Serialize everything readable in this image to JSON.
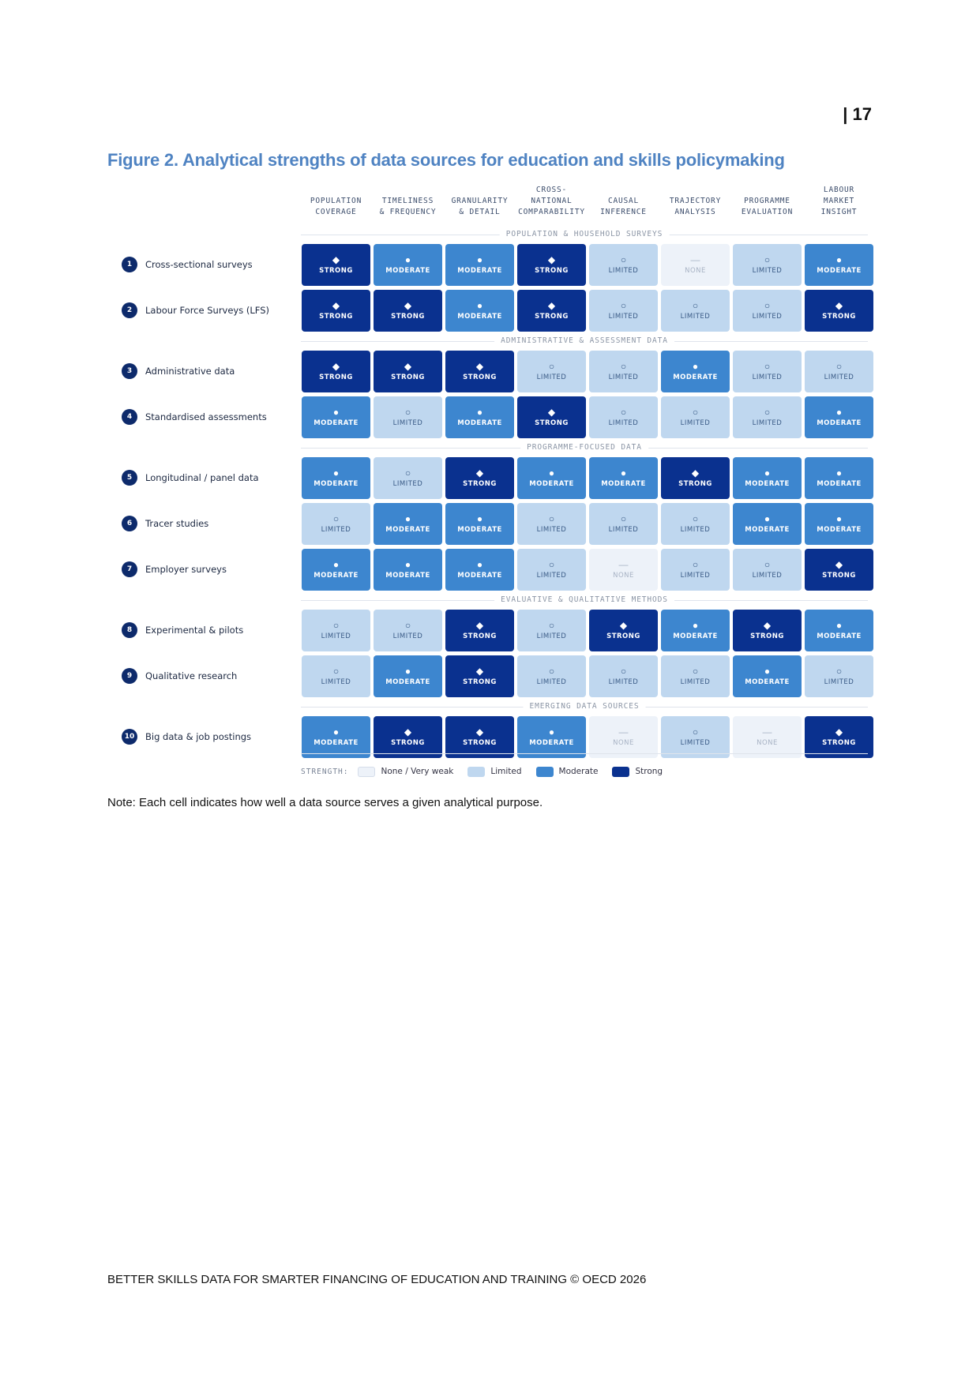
{
  "page": {
    "number": "| 17",
    "figure_title": "Figure 2. Analytical strengths of data sources for education and skills policymaking",
    "note": "Note: Each cell indicates how well a data source serves a given analytical purpose.",
    "footer": "BETTER SKILLS DATA FOR SMARTER FINANCING OF EDUCATION AND TRAINING © OECD 2026"
  },
  "columns": [
    "POPULATION\nCOVERAGE",
    "TIMELINESS\n& FREQUENCY",
    "GRANULARITY\n& DETAIL",
    "CROSS-\nNATIONAL\nCOMPARABILITY",
    "CAUSAL\nINFERENCE",
    "TRAJECTORY\nANALYSIS",
    "PROGRAMME\nEVALUATION",
    "LABOUR\nMARKET\nINSIGHT"
  ],
  "levels": {
    "strong": {
      "label": "STRONG",
      "symbol": "◆"
    },
    "moderate": {
      "label": "MODERATE",
      "symbol": "●"
    },
    "limited": {
      "label": "LIMITED",
      "symbol": "○"
    },
    "none": {
      "label": "NONE",
      "symbol": "—"
    }
  },
  "sections": [
    {
      "title": "POPULATION & HOUSEHOLD SURVEYS",
      "rows": [
        {
          "n": "1",
          "label": "Cross-sectional surveys",
          "cells": [
            "strong",
            "moderate",
            "moderate",
            "strong",
            "limited",
            "none",
            "limited",
            "moderate"
          ]
        },
        {
          "n": "2",
          "label": "Labour Force Surveys (LFS)",
          "cells": [
            "strong",
            "strong",
            "moderate",
            "strong",
            "limited",
            "limited",
            "limited",
            "strong"
          ]
        }
      ]
    },
    {
      "title": "ADMINISTRATIVE & ASSESSMENT DATA",
      "rows": [
        {
          "n": "3",
          "label": "Administrative data",
          "cells": [
            "strong",
            "strong",
            "strong",
            "limited",
            "limited",
            "moderate",
            "limited",
            "limited"
          ]
        },
        {
          "n": "4",
          "label": "Standardised assessments",
          "cells": [
            "moderate",
            "limited",
            "moderate",
            "strong",
            "limited",
            "limited",
            "limited",
            "moderate"
          ]
        }
      ]
    },
    {
      "title": "PROGRAMME-FOCUSED DATA",
      "rows": [
        {
          "n": "5",
          "label": "Longitudinal / panel data",
          "cells": [
            "moderate",
            "limited",
            "strong",
            "moderate",
            "moderate",
            "strong",
            "moderate",
            "moderate"
          ]
        },
        {
          "n": "6",
          "label": "Tracer studies",
          "cells": [
            "limited",
            "moderate",
            "moderate",
            "limited",
            "limited",
            "limited",
            "moderate",
            "moderate"
          ]
        },
        {
          "n": "7",
          "label": "Employer surveys",
          "cells": [
            "moderate",
            "moderate",
            "moderate",
            "limited",
            "none",
            "limited",
            "limited",
            "strong"
          ]
        }
      ]
    },
    {
      "title": "EVALUATIVE & QUALITATIVE METHODS",
      "rows": [
        {
          "n": "8",
          "label": "Experimental & pilots",
          "cells": [
            "limited",
            "limited",
            "strong",
            "limited",
            "strong",
            "moderate",
            "strong",
            "moderate"
          ]
        },
        {
          "n": "9",
          "label": "Qualitative research",
          "cells": [
            "limited",
            "moderate",
            "strong",
            "limited",
            "limited",
            "limited",
            "moderate",
            "limited"
          ]
        }
      ]
    },
    {
      "title": "EMERGING DATA SOURCES",
      "rows": [
        {
          "n": "10",
          "label": "Big data & job postings",
          "cells": [
            "moderate",
            "strong",
            "strong",
            "moderate",
            "none",
            "limited",
            "none",
            "strong"
          ]
        }
      ]
    }
  ],
  "legend": {
    "title": "STRENGTH:",
    "items": [
      {
        "key": "none",
        "label": "None / Very weak"
      },
      {
        "key": "limited",
        "label": "Limited"
      },
      {
        "key": "moderate",
        "label": "Moderate"
      },
      {
        "key": "strong",
        "label": "Strong"
      }
    ]
  },
  "colors": {
    "strong": "#0a318f",
    "moderate": "#3d86cf",
    "limited": "#bfd7ef",
    "none": "#edf2f9",
    "title": "#4f83c2"
  }
}
